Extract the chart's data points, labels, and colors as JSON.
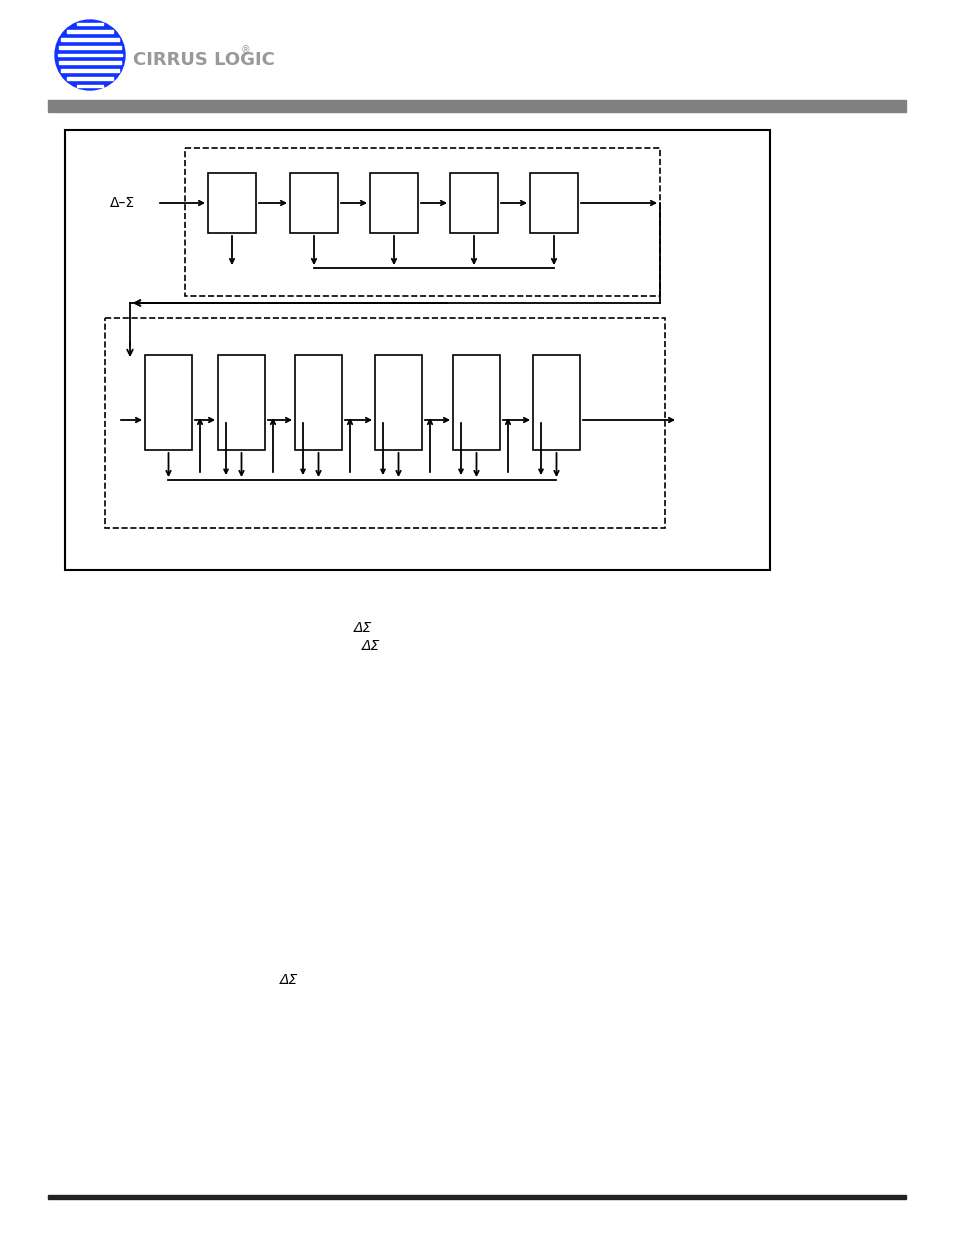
{
  "bg_color": "#ffffff",
  "gray_bar_color": "#808080",
  "delta_sigma_label": "Δ–Σ",
  "text1": "ΔΣ",
  "text2": "ΔΣ",
  "figure_width": 9.54,
  "figure_height": 12.35,
  "logo_color": "#2222ff",
  "logo_stripe_color": "#ffffff",
  "logo_text_color": "#999999"
}
